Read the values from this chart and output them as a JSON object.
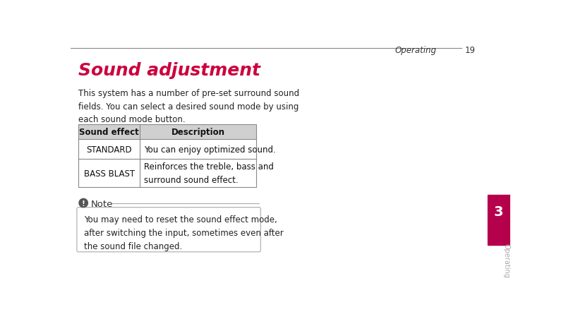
{
  "page_header_text": "Operating",
  "page_number": "19",
  "title": "Sound adjustment",
  "title_color": "#cc003f",
  "intro_text": "This system has a number of pre-set surround sound\nfields. You can select a desired sound mode by using\neach sound mode button.",
  "table_header": [
    "Sound effect",
    "Description"
  ],
  "table_rows": [
    [
      "STANDARD",
      "You can enjoy optimized sound."
    ],
    [
      "BASS BLAST",
      "Reinforces the treble, bass and\nsurround sound effect."
    ]
  ],
  "table_header_bg": "#d0d0d0",
  "table_border_color": "#888888",
  "note_label": "Note",
  "note_text": "You may need to reset the sound effect mode,\nafter switching the input, sometimes even after\nthe sound file changed.",
  "note_icon_color": "#555555",
  "note_box_border": "#aaaaaa",
  "note_box_bg": "#ffffff",
  "sidebar_color": "#b5004b",
  "sidebar_number": "3",
  "sidebar_text": "Operating",
  "bg_color": "#ffffff",
  "header_line_color": "#888888"
}
